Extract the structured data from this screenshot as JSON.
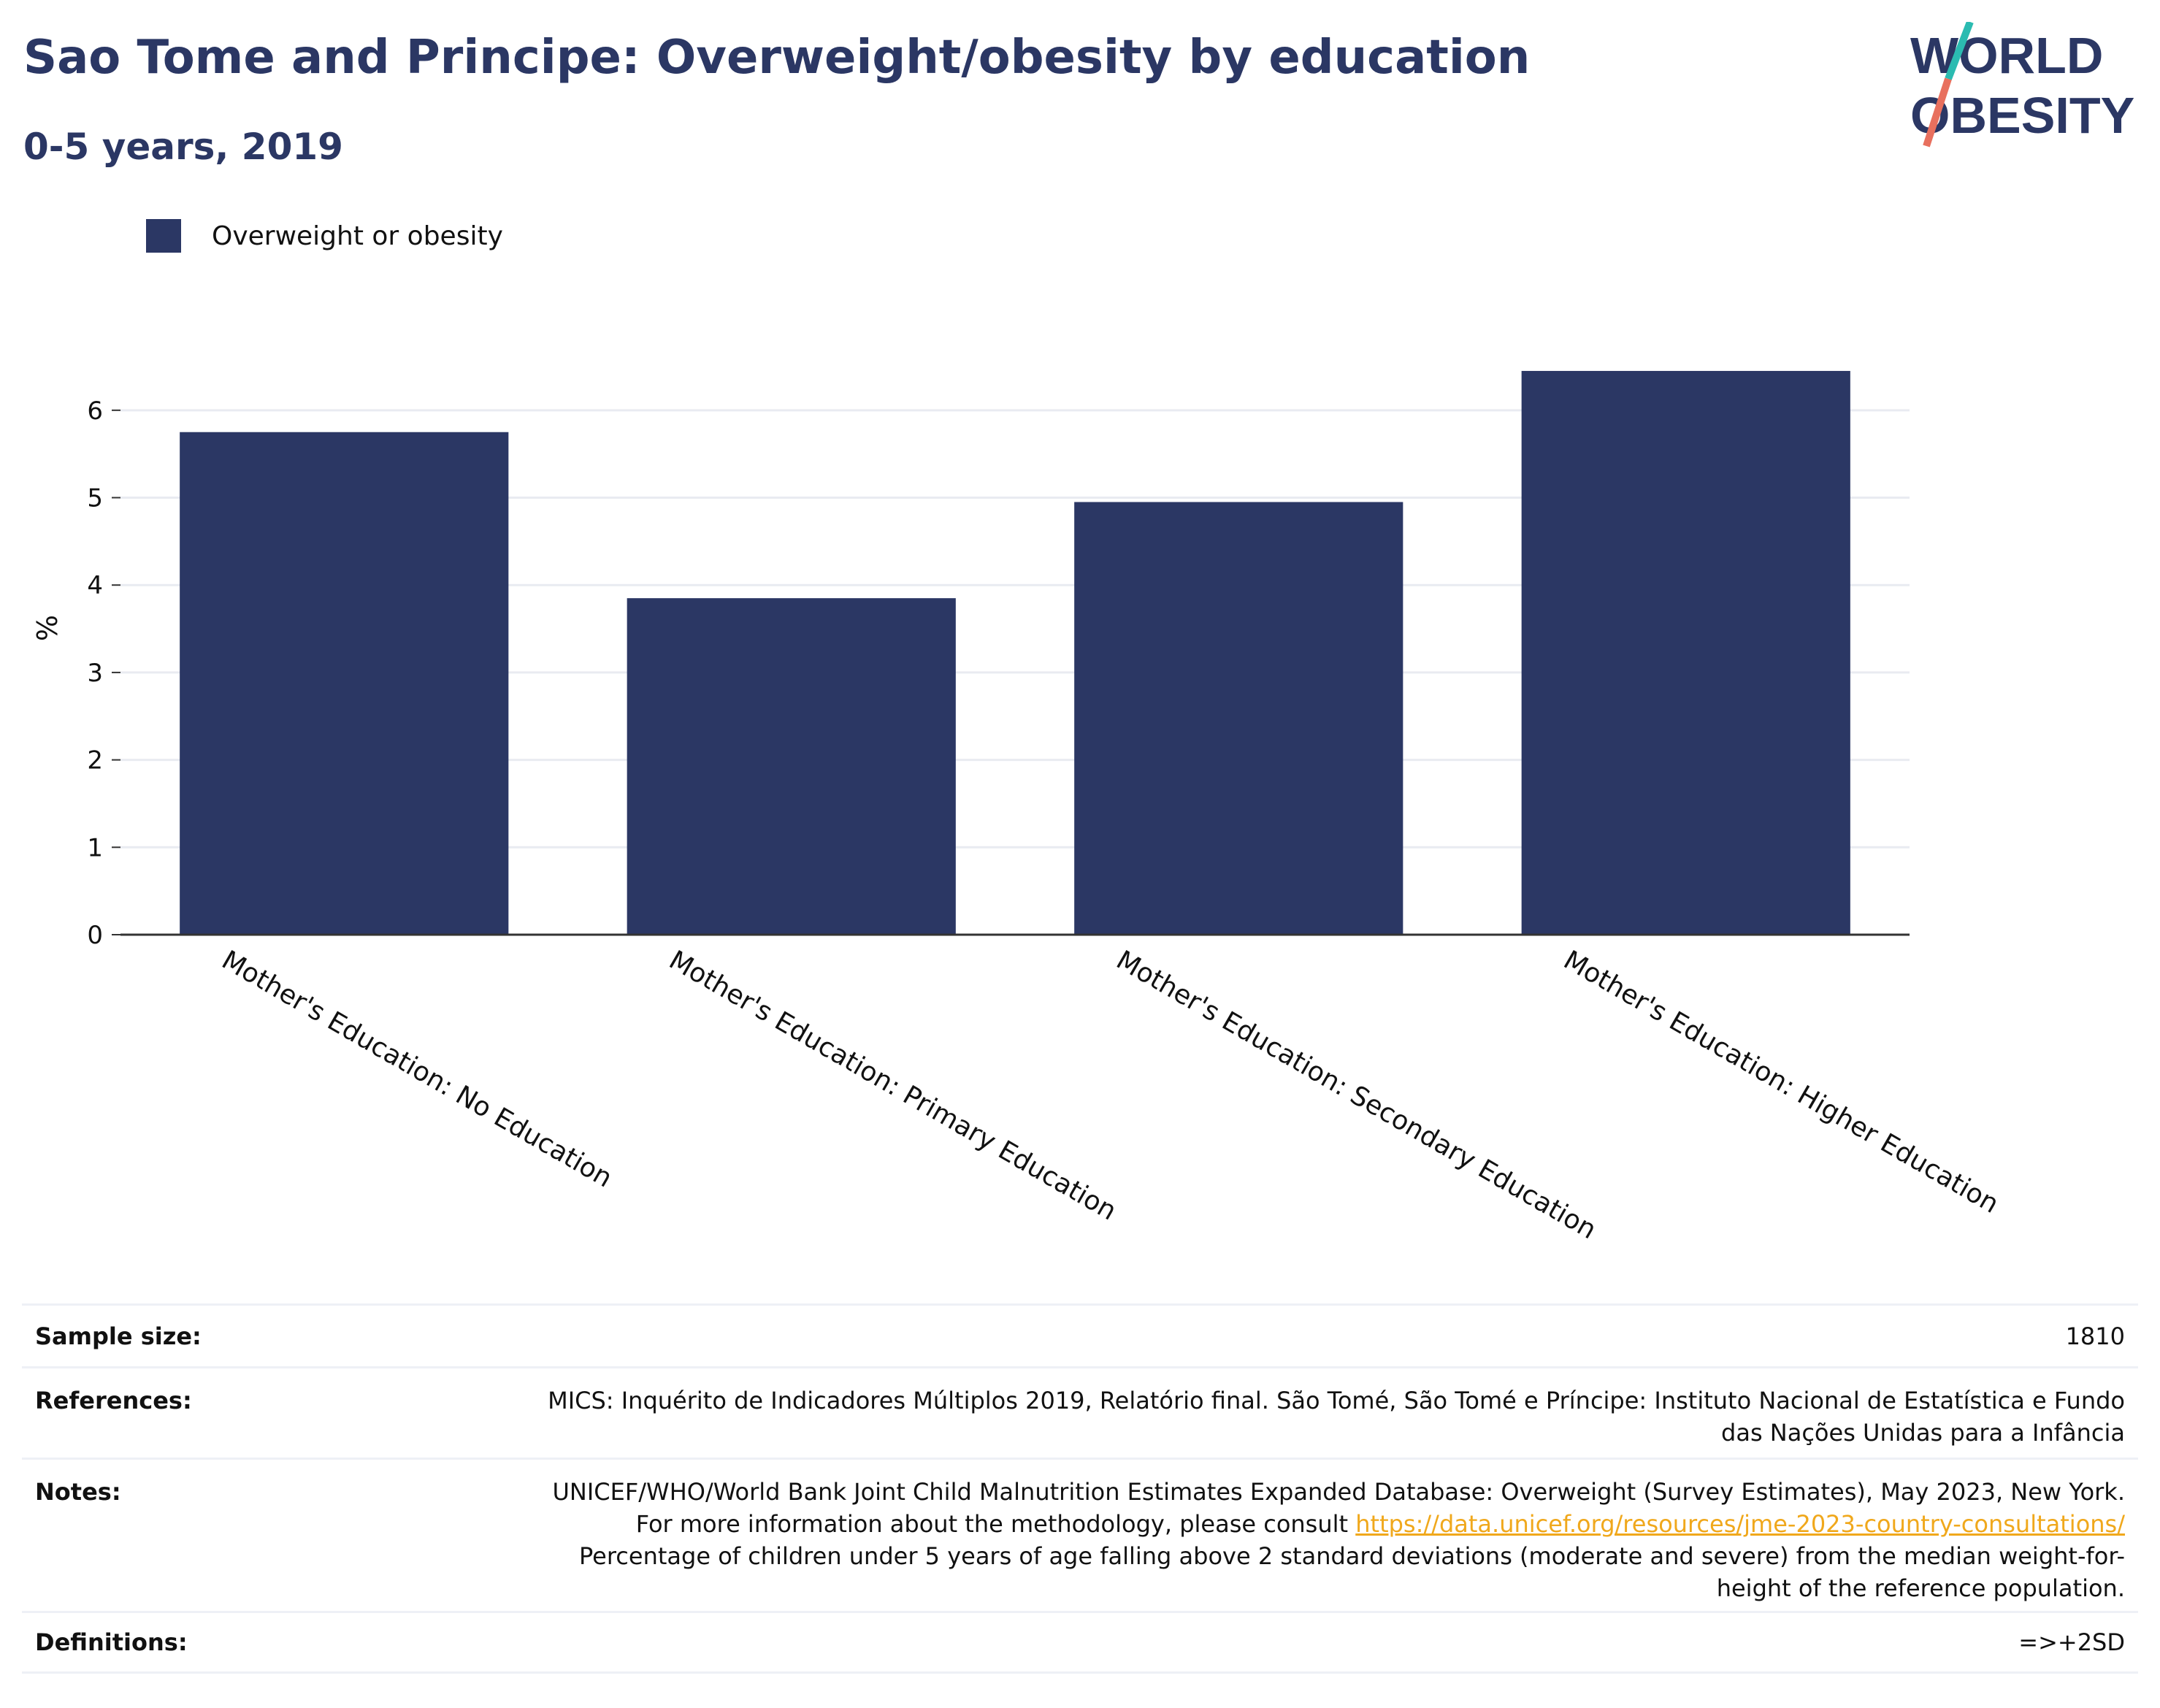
{
  "header": {
    "title": "Sao Tome and Principe: Overweight/obesity by education",
    "subtitle": "0-5 years, 2019"
  },
  "logo": {
    "line1": "WORLD",
    "line2": "OBESITY",
    "colors": {
      "text": "#2b3764",
      "slash_top": "#2bbbb1",
      "slash_bottom": "#e8705e"
    }
  },
  "legend": {
    "label": "Overweight or obesity",
    "color": "#2b3764"
  },
  "chart_data": {
    "type": "bar",
    "categories": [
      "Mother's Education: No Education",
      "Mother's Education: Primary Education",
      "Mother's Education: Secondary Education",
      "Mother's Education: Higher Education"
    ],
    "series": [
      {
        "name": "Overweight or obesity",
        "values": [
          5.75,
          3.85,
          4.95,
          6.45
        ],
        "color": "#2b3764"
      }
    ],
    "ylabel": "%",
    "xlabel": "",
    "ylim": [
      0,
      6.6
    ],
    "yticks": [
      0,
      1,
      2,
      3,
      4,
      5,
      6
    ],
    "grid": true,
    "legend_position": "top-left"
  },
  "info": {
    "sample_size_label": "Sample size:",
    "sample_size_value": "1810",
    "references_label": "References:",
    "references_value": "MICS: Inquérito de Indicadores Múltiplos 2019, Relatório final. São Tomé, São Tomé e Príncipe: Instituto Nacional de Estatística e Fundo das Nações Unidas para a Infância",
    "notes_label": "Notes:",
    "notes_text_1": "UNICEF/WHO/World Bank Joint Child Malnutrition Estimates Expanded Database: Overweight (Survey Estimates), May 2023, New York. For more information about the methodology, please consult ",
    "notes_link": "https://data.unicef.org/resources/jme-2023-country-consultations/",
    "notes_text_2": " Percentage of children under 5 years of age falling above 2 standard deviations (moderate and severe) from the median weight-for-height of the reference population.",
    "definitions_label": "Definitions:",
    "definitions_value": "=>+2SD"
  }
}
